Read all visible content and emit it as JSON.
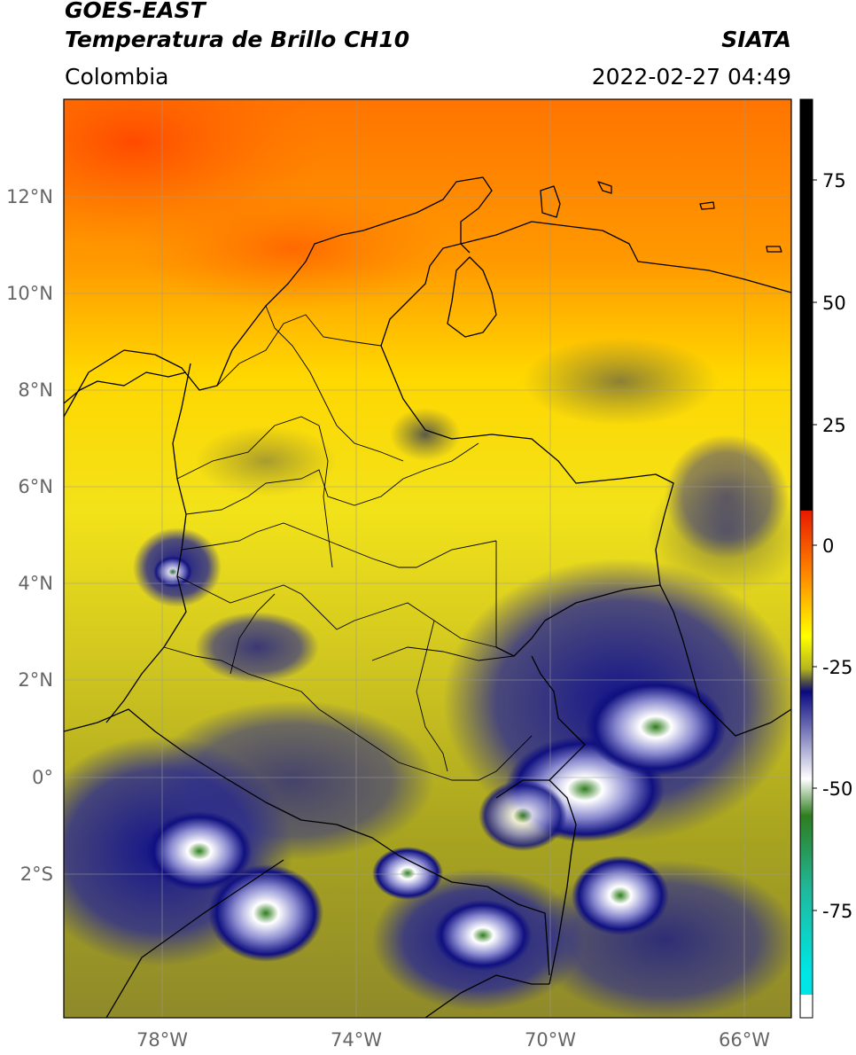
{
  "header": {
    "title_line1": "GOES-EAST",
    "title_line2": "Temperatura de Brillo CH10",
    "source": "SIATA",
    "region": "Colombia",
    "datetime": "2022-02-27 04:49"
  },
  "map": {
    "lat_labels": [
      "12°N",
      "10°N",
      "8°N",
      "6°N",
      "4°N",
      "2°N",
      "0°",
      "2°S"
    ],
    "lon_labels": [
      "78°W",
      "74°W",
      "70°W",
      "66°W"
    ],
    "gridlines": true
  },
  "colorbar": {
    "labels": [
      "75",
      "50",
      "25",
      "0",
      "-25",
      "-50",
      "-75"
    ],
    "colors": {
      "black": "#000000",
      "red": "#e81a00",
      "orange": "#ff8c00",
      "yellow": "#ffff00",
      "olive": "#b5b520",
      "gray": "#4a4a4a",
      "navy": "#0a0a80",
      "white": "#ffffff",
      "green": "#2e7d1e",
      "teal": "#20b89a",
      "cyan": "#00e5e5"
    }
  }
}
